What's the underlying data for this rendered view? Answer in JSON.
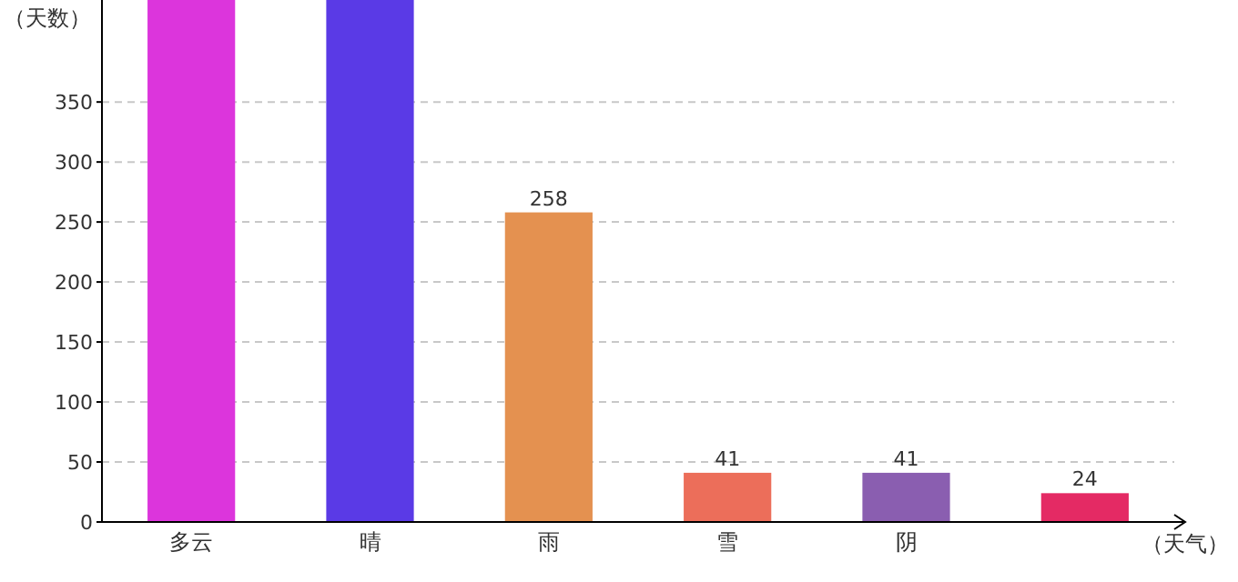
{
  "chart_data": {
    "type": "bar",
    "xlabel": "（天气）",
    "ylabel": "（天数）",
    "categories": [
      "多云",
      "晴",
      "雨",
      "雪",
      "阴",
      null
    ],
    "values": [
      435,
      435,
      258,
      41,
      41,
      24
    ],
    "value_labels": [
      null,
      null,
      "258",
      "41",
      "41",
      "24"
    ],
    "colors": [
      "#dc35dc",
      "#5a3ae6",
      "#e49150",
      "#ec6e5a",
      "#8a5eb0",
      "#e42a64"
    ],
    "ylim": [
      0,
      435
    ],
    "yticks": [
      0,
      50,
      100,
      150,
      200,
      250,
      300,
      350
    ],
    "grid": "y"
  }
}
